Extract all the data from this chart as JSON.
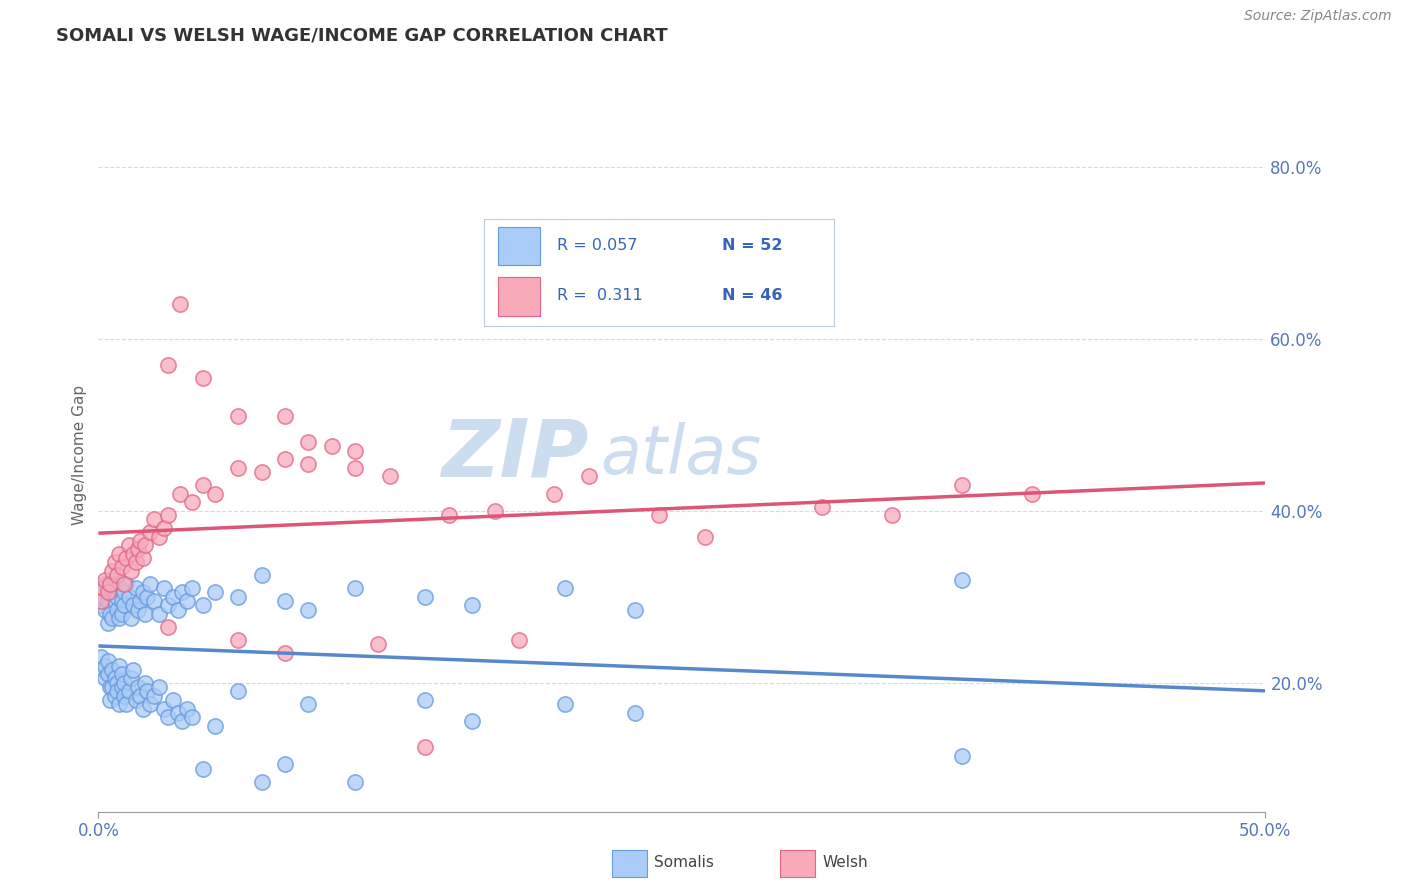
{
  "title": "SOMALI VS WELSH WAGE/INCOME GAP CORRELATION CHART",
  "source": "Source: ZipAtlas.com",
  "ylabel": "Wage/Income Gap",
  "yaxis_ticks": [
    "20.0%",
    "40.0%",
    "60.0%",
    "80.0%"
  ],
  "yaxis_values": [
    0.2,
    0.4,
    0.6,
    0.8
  ],
  "xaxis_range": [
    0.0,
    0.5
  ],
  "yaxis_range": [
    0.05,
    0.88
  ],
  "series1_label": "Somalis",
  "series2_label": "Welsh",
  "series1_color": "#aaccf8",
  "series2_color": "#f8aabb",
  "series1_edge": "#6699dd",
  "series2_edge": "#e06688",
  "series1_line_color": "#5588cc",
  "series2_line_color": "#dd5577",
  "watermark_zip": "ZIP",
  "watermark_atlas": "atlas",
  "watermark_color": "#ccddf0",
  "background_color": "#ffffff",
  "grid_color": "#ccddee",
  "title_color": "#333333",
  "source_color": "#888888",
  "tick_color": "#5577bb",
  "legend_text_color": "#3366bb",
  "legend_n_color": "#3366bb",
  "somalis_x": [
    0.001,
    0.002,
    0.003,
    0.003,
    0.004,
    0.004,
    0.005,
    0.005,
    0.006,
    0.006,
    0.007,
    0.007,
    0.008,
    0.008,
    0.009,
    0.009,
    0.01,
    0.01,
    0.011,
    0.011,
    0.012,
    0.013,
    0.014,
    0.015,
    0.016,
    0.017,
    0.018,
    0.019,
    0.02,
    0.021,
    0.022,
    0.024,
    0.026,
    0.028,
    0.03,
    0.032,
    0.034,
    0.036,
    0.038,
    0.04,
    0.045,
    0.05,
    0.06,
    0.07,
    0.08,
    0.09,
    0.11,
    0.14,
    0.16,
    0.2,
    0.23,
    0.37
  ],
  "somalis_y": [
    0.29,
    0.3,
    0.285,
    0.315,
    0.27,
    0.295,
    0.305,
    0.28,
    0.275,
    0.31,
    0.295,
    0.32,
    0.285,
    0.3,
    0.31,
    0.275,
    0.295,
    0.28,
    0.305,
    0.29,
    0.315,
    0.3,
    0.275,
    0.29,
    0.31,
    0.285,
    0.295,
    0.305,
    0.28,
    0.3,
    0.315,
    0.295,
    0.28,
    0.31,
    0.29,
    0.3,
    0.285,
    0.305,
    0.295,
    0.31,
    0.29,
    0.305,
    0.3,
    0.325,
    0.295,
    0.285,
    0.31,
    0.3,
    0.29,
    0.31,
    0.285,
    0.32
  ],
  "somalis_y_low": [
    0.23,
    0.215,
    0.22,
    0.205,
    0.225,
    0.21,
    0.195,
    0.18,
    0.215,
    0.195,
    0.205,
    0.185,
    0.2,
    0.19,
    0.175,
    0.22,
    0.195,
    0.21,
    0.2,
    0.185,
    0.175,
    0.19,
    0.205,
    0.215,
    0.18,
    0.195,
    0.185,
    0.17,
    0.2,
    0.19,
    0.175,
    0.185,
    0.195,
    0.17,
    0.16,
    0.18,
    0.165,
    0.155,
    0.17,
    0.16,
    0.1,
    0.15,
    0.19,
    0.085,
    0.105,
    0.175,
    0.085,
    0.18,
    0.155,
    0.175,
    0.165,
    0.115
  ],
  "welsh_x": [
    0.001,
    0.002,
    0.003,
    0.004,
    0.005,
    0.006,
    0.007,
    0.008,
    0.009,
    0.01,
    0.011,
    0.012,
    0.013,
    0.014,
    0.015,
    0.016,
    0.017,
    0.018,
    0.019,
    0.02,
    0.022,
    0.024,
    0.026,
    0.028,
    0.03,
    0.035,
    0.04,
    0.045,
    0.05,
    0.06,
    0.07,
    0.08,
    0.09,
    0.1,
    0.11,
    0.125,
    0.15,
    0.17,
    0.195,
    0.21,
    0.24,
    0.26,
    0.31,
    0.34,
    0.37,
    0.4
  ],
  "welsh_y": [
    0.295,
    0.31,
    0.32,
    0.305,
    0.315,
    0.33,
    0.34,
    0.325,
    0.35,
    0.335,
    0.315,
    0.345,
    0.36,
    0.33,
    0.35,
    0.34,
    0.355,
    0.365,
    0.345,
    0.36,
    0.375,
    0.39,
    0.37,
    0.38,
    0.395,
    0.42,
    0.41,
    0.43,
    0.42,
    0.45,
    0.445,
    0.46,
    0.455,
    0.475,
    0.45,
    0.44,
    0.395,
    0.4,
    0.42,
    0.44,
    0.395,
    0.37,
    0.405,
    0.395,
    0.43,
    0.42
  ],
  "welsh_outliers_x": [
    0.03,
    0.035,
    0.045,
    0.06,
    0.08,
    0.09,
    0.11
  ],
  "welsh_outliers_y": [
    0.57,
    0.64,
    0.555,
    0.51,
    0.51,
    0.48,
    0.47
  ],
  "welsh_low_x": [
    0.03,
    0.06,
    0.08,
    0.12,
    0.14,
    0.18
  ],
  "welsh_low_y": [
    0.265,
    0.25,
    0.235,
    0.245,
    0.125,
    0.25
  ]
}
